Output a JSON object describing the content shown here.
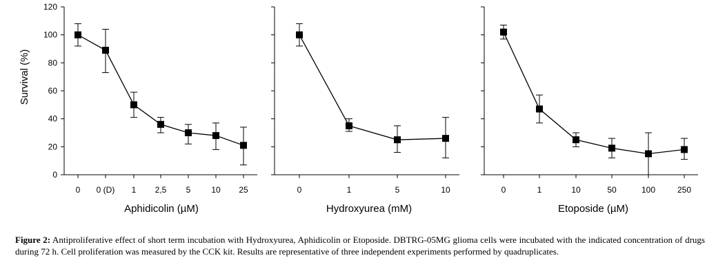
{
  "chart_data": [
    {
      "type": "line",
      "panel": "left",
      "xlabel": "Aphidicolin (µM)",
      "ylabel": "Survival (%)",
      "categories": [
        "0",
        "0 (D)",
        "1",
        "2,5",
        "5",
        "10",
        "25"
      ],
      "values": [
        100,
        89,
        50,
        36,
        30,
        28,
        21
      ],
      "error_low": [
        92,
        73,
        41,
        30,
        22,
        18,
        7
      ],
      "error_high": [
        108,
        104,
        59,
        41,
        36,
        37,
        34
      ],
      "ylim": [
        0,
        120
      ],
      "yticks": [
        "0",
        "20",
        "40",
        "60",
        "80",
        "100",
        "120"
      ],
      "grid": false
    },
    {
      "type": "line",
      "panel": "middle",
      "xlabel": "Hydroxyurea (mM)",
      "categories": [
        "0",
        "1",
        "5",
        "10"
      ],
      "values": [
        100,
        35,
        25,
        26
      ],
      "error_low": [
        92,
        31,
        16,
        12
      ],
      "error_high": [
        108,
        40,
        35,
        41
      ],
      "ylim": [
        0,
        120
      ],
      "grid": false
    },
    {
      "type": "line",
      "panel": "right",
      "xlabel": "Etoposide (µM)",
      "categories": [
        "0",
        "1",
        "10",
        "50",
        "100",
        "250"
      ],
      "values": [
        102,
        47,
        25,
        19,
        15,
        18
      ],
      "error_low": [
        97,
        37,
        20,
        12,
        0,
        11
      ],
      "error_high": [
        107,
        57,
        30,
        26,
        30,
        26
      ],
      "ylim": [
        0,
        120
      ],
      "grid": false
    }
  ],
  "caption": {
    "label": "Figure 2:",
    "text": "Antiproliferative effect of short term incubation with Hydroxyurea, Aphidicolin or Etoposide. DBTRG-05MG glioma cells were incubated with the indicated concentration of drugs during 72 h. Cell proliferation was measured by the CCK kit. Results are representative of three independent experiments performed by quadruplicates."
  }
}
